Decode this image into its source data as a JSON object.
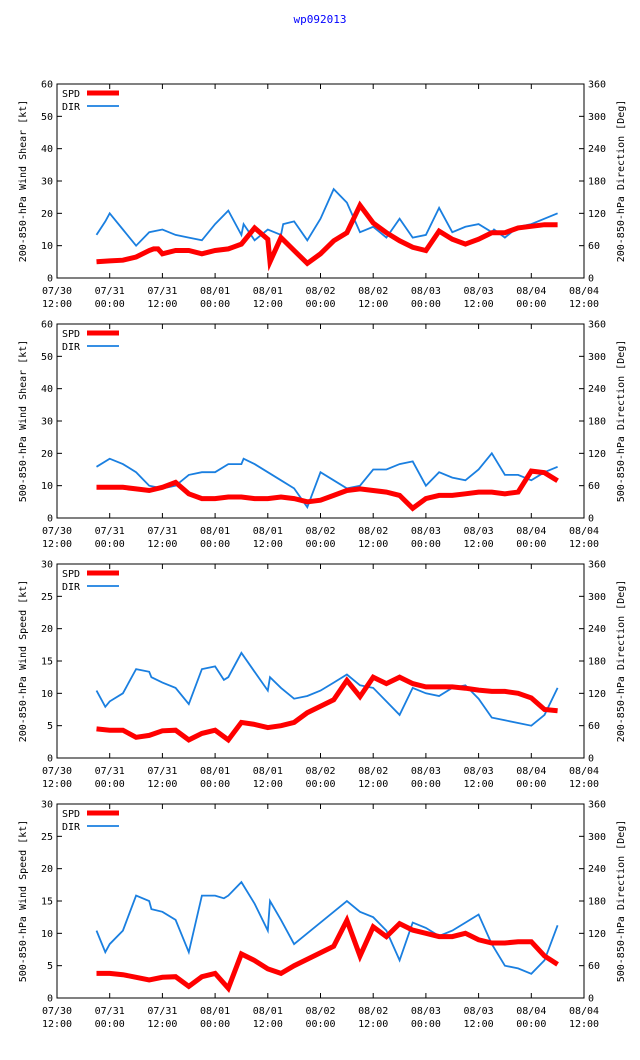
{
  "title": "wp092013",
  "colors": {
    "spd": "#ff0000",
    "dir": "#1a7fe0",
    "title": "#0000ff"
  },
  "x_tick_labels": [
    [
      "07/30",
      "12:00"
    ],
    [
      "07/31",
      "00:00"
    ],
    [
      "07/31",
      "12:00"
    ],
    [
      "08/01",
      "00:00"
    ],
    [
      "08/01",
      "12:00"
    ],
    [
      "08/02",
      "00:00"
    ],
    [
      "08/02",
      "12:00"
    ],
    [
      "08/03",
      "00:00"
    ],
    [
      "08/03",
      "12:00"
    ],
    [
      "08/04",
      "00:00"
    ],
    [
      "08/04",
      "12:00"
    ]
  ],
  "chart_data": [
    {
      "type": "line",
      "title": "",
      "ylabel": "200-850-hPa Wind Shear [kt]",
      "y2label": "200-850-hPa Direction [Deg]",
      "ylim": [
        0,
        60
      ],
      "y2lim": [
        0,
        360
      ],
      "yticks": [
        0,
        10,
        20,
        30,
        40,
        50,
        60
      ],
      "y2ticks": [
        0,
        60,
        120,
        180,
        240,
        300,
        360
      ],
      "xlim": [
        0,
        120
      ],
      "x_unit": "hours since 07/30 12:00",
      "legend": [
        "SPD",
        "DIR"
      ],
      "series": [
        {
          "name": "SPD",
          "axis": "left",
          "x": [
            9,
            12,
            15,
            18,
            21,
            22,
            23,
            24,
            27,
            30,
            33,
            36,
            39,
            40,
            42,
            45,
            48,
            48.5,
            51,
            54,
            57,
            60,
            63,
            66,
            69,
            72,
            75,
            78,
            81,
            84,
            87,
            90,
            93,
            96,
            99,
            102,
            105,
            108,
            111,
            114
          ],
          "y": [
            5,
            5.3,
            5.5,
            6.5,
            8.5,
            9,
            9,
            7.5,
            8.5,
            8.5,
            7.5,
            8.5,
            9,
            9.5,
            10.5,
            15.5,
            12,
            5,
            12.5,
            8.5,
            4.5,
            7.5,
            11.5,
            14,
            22.5,
            17,
            14,
            11.5,
            9.5,
            8.5,
            14.5,
            12,
            10.5,
            12,
            14,
            14,
            15.5,
            16,
            16.5,
            16.5
          ]
        },
        {
          "name": "DIR",
          "axis": "right",
          "x": [
            9,
            11,
            12,
            15,
            18,
            21,
            24,
            27,
            30,
            33,
            36,
            39,
            42,
            42.5,
            45,
            48,
            51,
            51.5,
            54,
            57,
            60,
            63,
            66,
            69,
            72,
            75,
            78,
            81,
            84,
            87,
            90,
            93,
            96,
            99,
            99.5,
            102,
            105,
            108,
            111,
            114
          ],
          "y": [
            80,
            105,
            120,
            90,
            60,
            85,
            90,
            80,
            75,
            70,
            100,
            125,
            80,
            100,
            70,
            90,
            80,
            100,
            105,
            70,
            110,
            165,
            140,
            85,
            95,
            75,
            110,
            75,
            80,
            130,
            85,
            95,
            100,
            85,
            90,
            75,
            95,
            100,
            110,
            120
          ]
        }
      ]
    },
    {
      "type": "line",
      "title": "",
      "ylabel": "500-850-hPa Wind Shear [kt]",
      "y2label": "500-850-hPa Direction [Deg]",
      "ylim": [
        0,
        60
      ],
      "y2lim": [
        0,
        360
      ],
      "yticks": [
        0,
        10,
        20,
        30,
        40,
        50,
        60
      ],
      "y2ticks": [
        0,
        60,
        120,
        180,
        240,
        300,
        360
      ],
      "xlim": [
        0,
        120
      ],
      "x_unit": "hours since 07/30 12:00",
      "legend": [
        "SPD",
        "DIR"
      ],
      "series": [
        {
          "name": "SPD",
          "axis": "left",
          "x": [
            9,
            12,
            15,
            18,
            21,
            24,
            27,
            30,
            33,
            36,
            39,
            42,
            45,
            48,
            51,
            54,
            57,
            60,
            63,
            66,
            69,
            72,
            75,
            78,
            81,
            84,
            87,
            90,
            93,
            96,
            99,
            102,
            105,
            108,
            111,
            114
          ],
          "y": [
            9.5,
            9.5,
            9.5,
            9,
            8.5,
            9.5,
            11,
            7.5,
            6,
            6,
            6.5,
            6.5,
            6,
            6,
            6.5,
            6,
            5,
            5.5,
            7,
            8.5,
            9,
            8.5,
            8,
            7,
            3,
            6,
            7,
            7,
            7.5,
            8,
            8,
            7.5,
            8,
            14.5,
            14,
            11.5
          ]
        },
        {
          "name": "DIR",
          "axis": "right",
          "x": [
            9,
            12,
            15,
            18,
            21,
            24,
            27,
            30,
            33,
            36,
            39,
            42,
            42.5,
            45,
            48,
            51,
            54,
            57,
            60,
            63,
            66,
            69,
            72,
            75,
            78,
            81,
            84,
            87,
            90,
            93,
            96,
            99,
            102,
            105,
            108,
            111,
            114
          ],
          "y": [
            95,
            110,
            100,
            85,
            60,
            55,
            60,
            80,
            85,
            85,
            100,
            100,
            110,
            100,
            85,
            70,
            55,
            20,
            85,
            70,
            55,
            60,
            90,
            90,
            100,
            105,
            60,
            85,
            75,
            70,
            90,
            120,
            80,
            80,
            70,
            85,
            95
          ]
        }
      ]
    },
    {
      "type": "line",
      "title": "",
      "ylabel": "200-850-hPa Wind Speed [kt]",
      "y2label": "200-850-hPa Direction [Deg]",
      "ylim": [
        0,
        30
      ],
      "y2lim": [
        0,
        360
      ],
      "yticks": [
        0,
        5,
        10,
        15,
        20,
        25,
        30
      ],
      "y2ticks": [
        0,
        60,
        120,
        180,
        240,
        300,
        360
      ],
      "xlim": [
        0,
        120
      ],
      "x_unit": "hours since 07/30 12:00",
      "legend": [
        "SPD",
        "DIR"
      ],
      "series": [
        {
          "name": "SPD",
          "axis": "left",
          "x": [
            9,
            12,
            15,
            18,
            21,
            24,
            27,
            30,
            33,
            36,
            39,
            42,
            45,
            48,
            51,
            54,
            57,
            60,
            63,
            66,
            69,
            72,
            75,
            78,
            81,
            84,
            87,
            90,
            93,
            96,
            99,
            102,
            105,
            108,
            111,
            114
          ],
          "y": [
            4.5,
            4.3,
            4.3,
            3.2,
            3.5,
            4.2,
            4.3,
            2.8,
            3.8,
            4.3,
            2.8,
            5.5,
            5.2,
            4.7,
            5,
            5.5,
            7,
            8,
            9,
            12,
            9.5,
            12.5,
            11.5,
            12.5,
            11.5,
            11,
            11,
            11,
            10.8,
            10.5,
            10.3,
            10.3,
            10,
            9.3,
            7.5,
            7.3
          ]
        },
        {
          "name": "DIR",
          "axis": "right",
          "x": [
            9,
            11,
            12,
            15,
            18,
            21,
            21.5,
            24,
            27,
            30,
            33,
            36,
            38,
            39,
            42,
            45,
            48,
            48.5,
            51,
            54,
            57,
            60,
            63,
            66,
            69,
            72,
            75,
            78,
            81,
            84,
            87,
            90,
            93,
            96,
            99,
            102,
            105,
            108,
            111,
            114
          ],
          "y": [
            125,
            95,
            105,
            120,
            165,
            160,
            150,
            140,
            130,
            100,
            165,
            170,
            145,
            150,
            195,
            160,
            125,
            150,
            130,
            110,
            115,
            125,
            140,
            155,
            135,
            130,
            105,
            80,
            130,
            120,
            115,
            130,
            135,
            110,
            75,
            70,
            65,
            60,
            80,
            130
          ]
        }
      ]
    },
    {
      "type": "line",
      "title": "",
      "ylabel": "500-850-hPa Wind Speed [kt]",
      "y2label": "500-850-hPa Direction [Deg]",
      "ylim": [
        0,
        30
      ],
      "y2lim": [
        0,
        360
      ],
      "yticks": [
        0,
        5,
        10,
        15,
        20,
        25,
        30
      ],
      "y2ticks": [
        0,
        60,
        120,
        180,
        240,
        300,
        360
      ],
      "xlim": [
        0,
        120
      ],
      "x_unit": "hours since 07/30 12:00",
      "legend": [
        "SPD",
        "DIR"
      ],
      "series": [
        {
          "name": "SPD",
          "axis": "left",
          "x": [
            9,
            12,
            15,
            18,
            21,
            24,
            27,
            30,
            33,
            36,
            39,
            42,
            45,
            48,
            51,
            54,
            57,
            60,
            63,
            66,
            69,
            72,
            75,
            78,
            81,
            84,
            87,
            90,
            93,
            96,
            99,
            102,
            105,
            108,
            111,
            114
          ],
          "y": [
            3.8,
            3.8,
            3.6,
            3.2,
            2.8,
            3.2,
            3.3,
            1.8,
            3.3,
            3.8,
            1.5,
            6.8,
            5.8,
            4.5,
            3.8,
            5,
            6,
            7,
            8,
            12,
            6.5,
            11,
            9.5,
            11.5,
            10.5,
            10,
            9.5,
            9.5,
            10,
            9,
            8.5,
            8.5,
            8.7,
            8.7,
            6.5,
            5.2
          ]
        },
        {
          "name": "DIR",
          "axis": "right",
          "x": [
            9,
            11,
            12,
            15,
            18,
            21,
            21.5,
            24,
            27,
            30,
            33,
            36,
            38,
            39,
            42,
            45,
            48,
            48.5,
            51,
            54,
            57,
            60,
            63,
            66,
            69,
            72,
            75,
            78,
            81,
            84,
            87,
            90,
            93,
            96,
            99,
            102,
            105,
            108,
            111,
            114
          ],
          "y": [
            125,
            85,
            100,
            125,
            190,
            180,
            165,
            160,
            145,
            85,
            190,
            190,
            185,
            190,
            215,
            175,
            125,
            180,
            145,
            100,
            120,
            140,
            160,
            180,
            160,
            150,
            125,
            70,
            140,
            130,
            115,
            125,
            140,
            155,
            100,
            60,
            55,
            45,
            70,
            135
          ]
        }
      ]
    }
  ]
}
